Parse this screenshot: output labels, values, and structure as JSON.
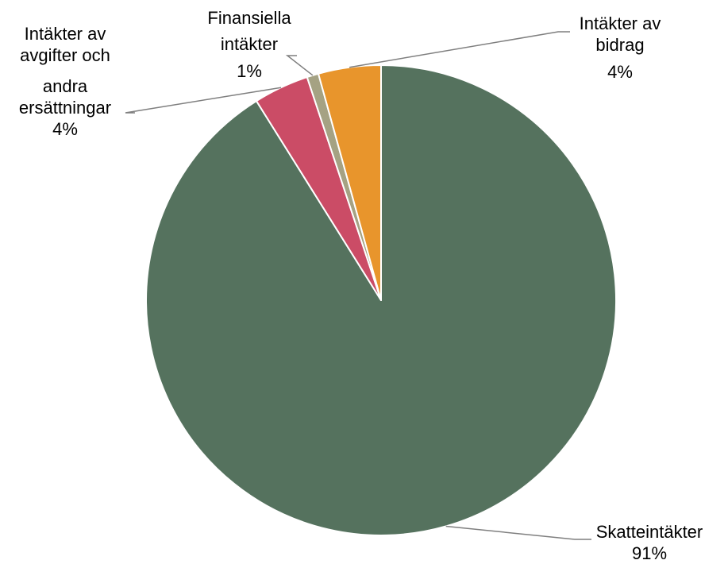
{
  "chart_data": {
    "type": "pie",
    "title": "",
    "legend": "none",
    "start_angle_deg": 0,
    "direction": "clockwise",
    "slices": [
      {
        "name": "Skatteintäkter",
        "label_lines": [
          "Skatteintäkter"
        ],
        "percent_label": "91%",
        "value": 91.1,
        "color": "#55725E"
      },
      {
        "name": "Intäkter av avgifter och andra ersättningar",
        "label_lines": [
          "Intäkter av",
          "avgifter och",
          "andra",
          "ersättningar"
        ],
        "percent_label": "4%",
        "value": 3.8,
        "color": "#CB4C66"
      },
      {
        "name": "Finansiella intäkter",
        "label_lines": [
          "Finansiella",
          "intäkter"
        ],
        "percent_label": "1%",
        "value": 0.8,
        "color": "#A5A283"
      },
      {
        "name": "Intäkter av bidrag",
        "label_lines": [
          "Intäkter av",
          "bidrag"
        ],
        "percent_label": "4%",
        "value": 4.3,
        "color": "#E8952C"
      }
    ]
  }
}
